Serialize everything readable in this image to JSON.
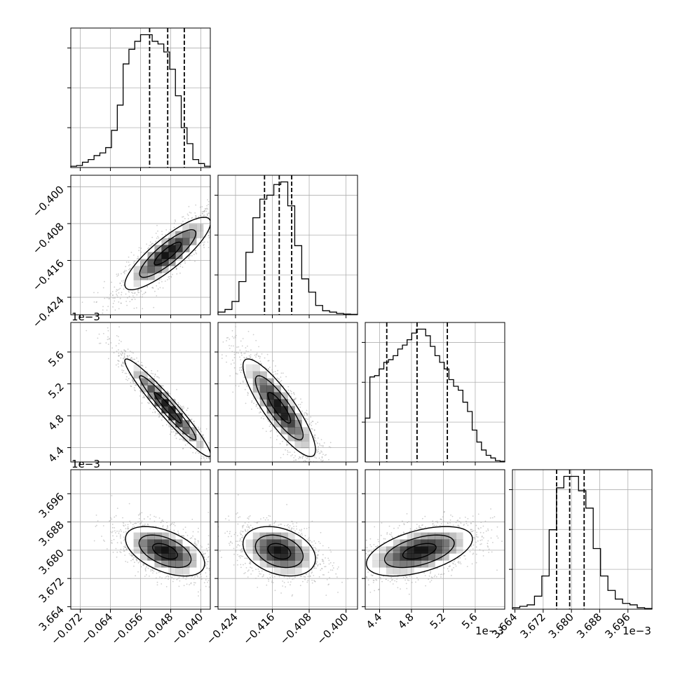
{
  "chart_data": {
    "type": "corner",
    "parameters": [
      {
        "range": [
          -0.0745,
          -0.0375
        ],
        "ticks": [
          "−0.072",
          "−0.064",
          "−0.056",
          "−0.048",
          "−0.040"
        ],
        "tick_values": [
          -0.072,
          -0.064,
          -0.056,
          -0.048,
          -0.04
        ],
        "quantiles": [
          -0.0536,
          -0.0488,
          -0.0444
        ],
        "scale_label": ""
      },
      {
        "range": [
          -0.4278,
          -0.3975
        ],
        "ticks": [
          "−0.424",
          "−0.416",
          "−0.408",
          "−0.400"
        ],
        "tick_values": [
          -0.424,
          -0.416,
          -0.408,
          -0.4
        ],
        "quantiles": [
          -0.4177,
          -0.4145,
          -0.4118
        ],
        "scale_label": ""
      },
      {
        "range": [
          4.22,
          5.97
        ],
        "ticks": [
          "4.4",
          "4.8",
          "5.2",
          "5.6"
        ],
        "tick_values": [
          4.4,
          4.8,
          5.2,
          5.6
        ],
        "quantiles": [
          4.49,
          4.87,
          5.25
        ],
        "scale_label": "1e−3"
      },
      {
        "range": [
          3.6633,
          3.7028
        ],
        "ticks": [
          "3.664",
          "3.672",
          "3.680",
          "3.688",
          "3.696"
        ],
        "tick_values": [
          3.664,
          3.672,
          3.68,
          3.688,
          3.696
        ],
        "quantiles": [
          3.6758,
          3.6795,
          3.6836
        ],
        "scale_label": "1e−3"
      }
    ],
    "histograms": [
      {
        "param": 0,
        "counts": [
          1,
          1.5,
          4,
          6,
          9,
          11,
          15,
          28,
          47,
          78,
          89,
          95,
          100,
          100,
          95,
          93,
          87,
          74,
          54,
          30,
          18,
          6,
          3,
          1
        ]
      },
      {
        "param": 1,
        "counts": [
          2,
          4,
          10,
          25,
          47,
          73,
          87,
          90,
          98,
          100,
          82,
          52,
          27,
          17,
          7,
          3,
          2,
          1,
          0.5,
          0.3
        ]
      },
      {
        "param": 2,
        "counts": [
          33,
          64,
          65,
          70,
          75,
          77,
          80,
          85,
          88,
          92,
          97,
          100,
          100,
          95,
          87,
          80,
          75,
          70,
          62,
          57,
          54,
          45,
          38,
          24,
          15,
          9,
          5,
          3,
          1,
          0.5
        ]
      },
      {
        "param": 3,
        "counts": [
          1,
          2,
          3,
          9,
          23,
          55,
          84,
          92,
          92,
          82,
          70,
          42,
          23,
          13,
          7,
          4,
          3,
          1,
          0.5
        ]
      }
    ],
    "pairs": [
      {
        "x": 0,
        "y": 1,
        "mean": [
          -0.0488,
          -0.4145
        ],
        "sd": [
          0.0065,
          0.0045
        ],
        "rho": 0.85
      },
      {
        "x": 0,
        "y": 2,
        "mean": [
          -0.0488,
          4.9
        ],
        "sd": [
          0.0065,
          0.35
        ],
        "rho": -0.96
      },
      {
        "x": 1,
        "y": 2,
        "mean": [
          -0.4145,
          4.9
        ],
        "sd": [
          0.0045,
          0.35
        ],
        "rho": -0.86
      },
      {
        "x": 0,
        "y": 3,
        "mean": [
          -0.0495,
          3.6797
        ],
        "sd": [
          0.006,
          0.004
        ],
        "rho": -0.5
      },
      {
        "x": 1,
        "y": 3,
        "mean": [
          -0.4145,
          3.6797
        ],
        "sd": [
          0.0045,
          0.004
        ],
        "rho": -0.3
      },
      {
        "x": 2,
        "y": 3,
        "mean": [
          4.9,
          3.6797
        ],
        "sd": [
          0.38,
          0.004
        ],
        "rho": 0.5
      }
    ],
    "contour_levels": [
      0.39,
      0.86,
      1.46
    ],
    "histogram_style": "step",
    "quantile_line_style": "dashed",
    "grid": true,
    "colors": {
      "contour": "#000000",
      "points": "#a6a6a6",
      "grid": "#b0b0b0",
      "density": "#000000"
    }
  }
}
